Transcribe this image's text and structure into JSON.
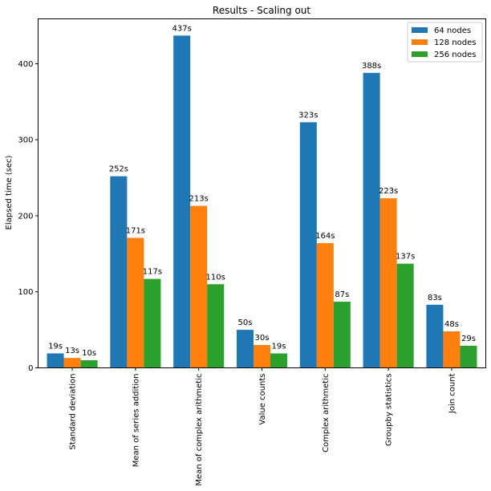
{
  "chart_data": {
    "type": "bar",
    "title": "Results - Scaling out",
    "xlabel": "",
    "ylabel": "Elapsed time (sec)",
    "ylim": [
      0,
      459
    ],
    "yticks": [
      0,
      100,
      200,
      300,
      400
    ],
    "categories": [
      "Standard deviation",
      "Mean of series addition",
      "Mean of complex arithmetic",
      "Value counts",
      "Complex arithmetic",
      "Groupby statistics",
      "Join count"
    ],
    "series": [
      {
        "name": "64 nodes",
        "color": "#1f77b4",
        "values": [
          19,
          252,
          437,
          50,
          323,
          388,
          83
        ],
        "labels": [
          "19s",
          "252s",
          "437s",
          "50s",
          "323s",
          "388s",
          "83s"
        ]
      },
      {
        "name": "128 nodes",
        "color": "#ff7f0e",
        "values": [
          13,
          171,
          213,
          30,
          164,
          223,
          48
        ],
        "labels": [
          "13s",
          "171s",
          "213s",
          "30s",
          "164s",
          "223s",
          "48s"
        ]
      },
      {
        "name": "256 nodes",
        "color": "#2ca02c",
        "values": [
          10,
          117,
          110,
          19,
          87,
          137,
          29
        ],
        "labels": [
          "10s",
          "117s",
          "110s",
          "19s",
          "87s",
          "137s",
          "29s"
        ]
      }
    ],
    "legend": "top-right",
    "grid": false
  }
}
